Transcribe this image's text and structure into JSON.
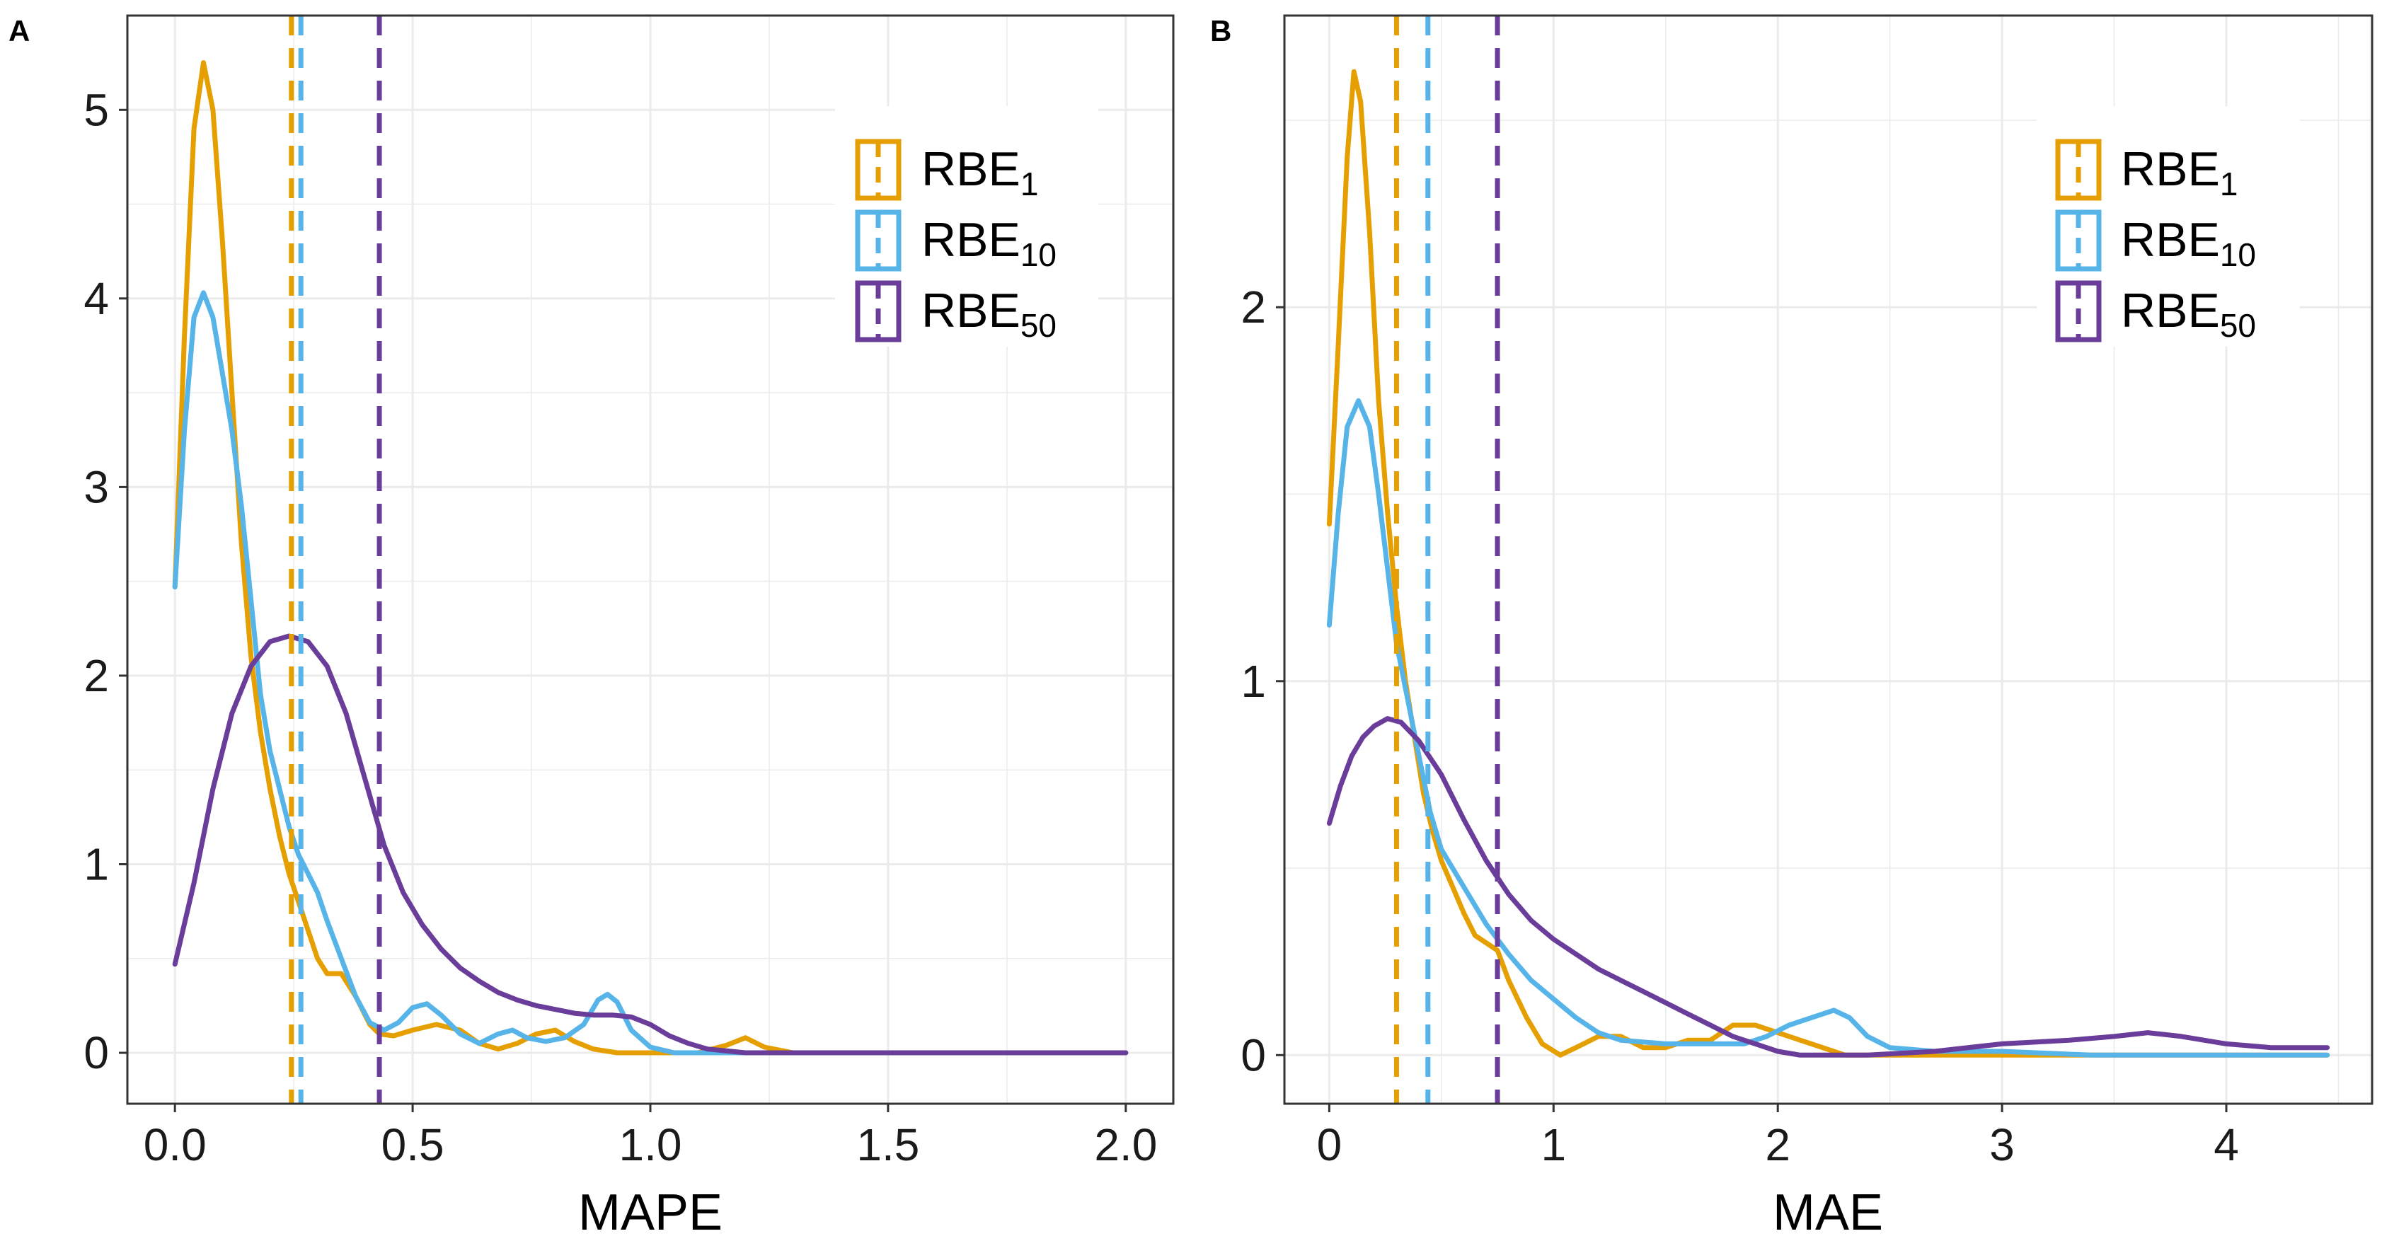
{
  "figure": {
    "panels": [
      {
        "tag": "A",
        "xlabel": "MAPE",
        "x_ticks": [
          "0.0",
          "0.5",
          "1.0",
          "1.5",
          "2.0"
        ],
        "y_ticks": [
          "0",
          "1",
          "2",
          "3",
          "4",
          "5"
        ]
      },
      {
        "tag": "B",
        "xlabel": "MAE",
        "x_ticks": [
          "0",
          "1",
          "2",
          "3",
          "4"
        ],
        "y_ticks": [
          "0",
          "1",
          "2"
        ]
      }
    ],
    "legend": [
      {
        "base": "RBE",
        "sub": "1"
      },
      {
        "base": "RBE",
        "sub": "10"
      },
      {
        "base": "RBE",
        "sub": "50"
      }
    ]
  },
  "colors": {
    "RBE1": "#E69F00",
    "RBE10": "#56B4E9",
    "RBE50": "#6A3D9A",
    "grid": "#ebebeb",
    "frame": "#333333"
  },
  "chart_data": [
    {
      "type": "line",
      "kind": "density",
      "title": "",
      "panel": "A",
      "xlabel": "MAPE",
      "ylabel": "",
      "xlim": [
        -0.1,
        2.1
      ],
      "ylim": [
        -0.27,
        5.5
      ],
      "x_ticks": [
        0,
        0.5,
        1.0,
        1.5,
        2.0
      ],
      "y_ticks": [
        0,
        1,
        2,
        3,
        4,
        5
      ],
      "series": [
        {
          "name": "RBE1",
          "color_key": "RBE1",
          "points": [
            [
              0,
              2.47
            ],
            [
              0.02,
              3.8
            ],
            [
              0.04,
              4.9
            ],
            [
              0.06,
              5.25
            ],
            [
              0.08,
              5.0
            ],
            [
              0.1,
              4.3
            ],
            [
              0.12,
              3.5
            ],
            [
              0.14,
              2.7
            ],
            [
              0.16,
              2.1
            ],
            [
              0.18,
              1.7
            ],
            [
              0.2,
              1.4
            ],
            [
              0.22,
              1.15
            ],
            [
              0.24,
              0.95
            ],
            [
              0.26,
              0.8
            ],
            [
              0.28,
              0.65
            ],
            [
              0.3,
              0.5
            ],
            [
              0.32,
              0.42
            ],
            [
              0.35,
              0.42
            ],
            [
              0.38,
              0.3
            ],
            [
              0.41,
              0.15
            ],
            [
              0.43,
              0.1
            ],
            [
              0.46,
              0.09
            ],
            [
              0.5,
              0.12
            ],
            [
              0.55,
              0.15
            ],
            [
              0.6,
              0.12
            ],
            [
              0.64,
              0.05
            ],
            [
              0.68,
              0.02
            ],
            [
              0.72,
              0.05
            ],
            [
              0.76,
              0.1
            ],
            [
              0.8,
              0.12
            ],
            [
              0.84,
              0.06
            ],
            [
              0.88,
              0.02
            ],
            [
              0.93,
              0.0
            ],
            [
              1.0,
              0.0
            ],
            [
              1.1,
              0.0
            ],
            [
              1.16,
              0.04
            ],
            [
              1.2,
              0.08
            ],
            [
              1.24,
              0.03
            ],
            [
              1.3,
              0.0
            ],
            [
              1.5,
              0.0
            ],
            [
              2.0,
              0.0
            ]
          ]
        },
        {
          "name": "RBE10",
          "color_key": "RBE10",
          "points": [
            [
              0,
              2.47
            ],
            [
              0.02,
              3.3
            ],
            [
              0.04,
              3.9
            ],
            [
              0.06,
              4.03
            ],
            [
              0.08,
              3.9
            ],
            [
              0.1,
              3.6
            ],
            [
              0.12,
              3.3
            ],
            [
              0.14,
              2.9
            ],
            [
              0.16,
              2.4
            ],
            [
              0.18,
              1.9
            ],
            [
              0.2,
              1.6
            ],
            [
              0.22,
              1.4
            ],
            [
              0.24,
              1.2
            ],
            [
              0.26,
              1.05
            ],
            [
              0.28,
              0.95
            ],
            [
              0.3,
              0.85
            ],
            [
              0.32,
              0.7
            ],
            [
              0.35,
              0.5
            ],
            [
              0.38,
              0.3
            ],
            [
              0.41,
              0.16
            ],
            [
              0.44,
              0.12
            ],
            [
              0.47,
              0.16
            ],
            [
              0.5,
              0.24
            ],
            [
              0.53,
              0.26
            ],
            [
              0.56,
              0.2
            ],
            [
              0.6,
              0.1
            ],
            [
              0.64,
              0.05
            ],
            [
              0.68,
              0.1
            ],
            [
              0.71,
              0.12
            ],
            [
              0.74,
              0.08
            ],
            [
              0.78,
              0.06
            ],
            [
              0.82,
              0.08
            ],
            [
              0.86,
              0.15
            ],
            [
              0.89,
              0.28
            ],
            [
              0.91,
              0.31
            ],
            [
              0.93,
              0.27
            ],
            [
              0.96,
              0.12
            ],
            [
              1.0,
              0.03
            ],
            [
              1.05,
              0.0
            ],
            [
              1.2,
              0.0
            ],
            [
              2.0,
              0.0
            ]
          ]
        },
        {
          "name": "RBE50",
          "color_key": "RBE50",
          "points": [
            [
              0,
              0.47
            ],
            [
              0.04,
              0.9
            ],
            [
              0.08,
              1.4
            ],
            [
              0.12,
              1.8
            ],
            [
              0.16,
              2.05
            ],
            [
              0.2,
              2.18
            ],
            [
              0.24,
              2.21
            ],
            [
              0.28,
              2.18
            ],
            [
              0.32,
              2.05
            ],
            [
              0.36,
              1.8
            ],
            [
              0.4,
              1.45
            ],
            [
              0.44,
              1.1
            ],
            [
              0.48,
              0.85
            ],
            [
              0.52,
              0.68
            ],
            [
              0.56,
              0.55
            ],
            [
              0.6,
              0.45
            ],
            [
              0.64,
              0.38
            ],
            [
              0.68,
              0.32
            ],
            [
              0.72,
              0.28
            ],
            [
              0.76,
              0.25
            ],
            [
              0.8,
              0.23
            ],
            [
              0.84,
              0.21
            ],
            [
              0.88,
              0.2
            ],
            [
              0.92,
              0.2
            ],
            [
              0.96,
              0.19
            ],
            [
              1.0,
              0.15
            ],
            [
              1.04,
              0.09
            ],
            [
              1.08,
              0.05
            ],
            [
              1.12,
              0.02
            ],
            [
              1.2,
              0.0
            ],
            [
              1.3,
              0.0
            ],
            [
              2.0,
              0.0
            ]
          ]
        }
      ],
      "vlines": [
        {
          "series": "RBE1",
          "x": 0.245
        },
        {
          "series": "RBE10",
          "x": 0.265
        },
        {
          "series": "RBE50",
          "x": 0.43
        }
      ],
      "legend": "top-right"
    },
    {
      "type": "line",
      "kind": "density",
      "title": "",
      "panel": "B",
      "xlabel": "MAE",
      "ylabel": "",
      "xlim": [
        -0.2,
        4.65
      ],
      "ylim": [
        -0.13,
        2.78
      ],
      "x_ticks": [
        0,
        1,
        2,
        3,
        4
      ],
      "y_ticks": [
        0,
        1,
        2
      ],
      "series": [
        {
          "name": "RBE1",
          "color_key": "RBE1",
          "points": [
            [
              0,
              1.42
            ],
            [
              0.04,
              1.9
            ],
            [
              0.08,
              2.4
            ],
            [
              0.11,
              2.63
            ],
            [
              0.14,
              2.55
            ],
            [
              0.18,
              2.2
            ],
            [
              0.22,
              1.75
            ],
            [
              0.26,
              1.45
            ],
            [
              0.3,
              1.2
            ],
            [
              0.34,
              1.0
            ],
            [
              0.38,
              0.85
            ],
            [
              0.42,
              0.7
            ],
            [
              0.46,
              0.6
            ],
            [
              0.5,
              0.52
            ],
            [
              0.55,
              0.45
            ],
            [
              0.6,
              0.38
            ],
            [
              0.65,
              0.32
            ],
            [
              0.7,
              0.3
            ],
            [
              0.75,
              0.28
            ],
            [
              0.8,
              0.2
            ],
            [
              0.88,
              0.1
            ],
            [
              0.95,
              0.03
            ],
            [
              1.03,
              0.0
            ],
            [
              1.1,
              0.02
            ],
            [
              1.2,
              0.05
            ],
            [
              1.3,
              0.05
            ],
            [
              1.4,
              0.02
            ],
            [
              1.5,
              0.02
            ],
            [
              1.6,
              0.04
            ],
            [
              1.7,
              0.04
            ],
            [
              1.8,
              0.08
            ],
            [
              1.9,
              0.08
            ],
            [
              2.0,
              0.06
            ],
            [
              2.1,
              0.04
            ],
            [
              2.2,
              0.02
            ],
            [
              2.3,
              0.0
            ],
            [
              3.0,
              0.0
            ],
            [
              4.45,
              0.0
            ]
          ]
        },
        {
          "name": "RBE10",
          "color_key": "RBE10",
          "points": [
            [
              0,
              1.15
            ],
            [
              0.04,
              1.45
            ],
            [
              0.08,
              1.68
            ],
            [
              0.13,
              1.75
            ],
            [
              0.18,
              1.68
            ],
            [
              0.22,
              1.5
            ],
            [
              0.26,
              1.3
            ],
            [
              0.3,
              1.1
            ],
            [
              0.35,
              0.95
            ],
            [
              0.4,
              0.8
            ],
            [
              0.45,
              0.65
            ],
            [
              0.5,
              0.55
            ],
            [
              0.6,
              0.45
            ],
            [
              0.7,
              0.35
            ],
            [
              0.8,
              0.27
            ],
            [
              0.9,
              0.2
            ],
            [
              1.0,
              0.15
            ],
            [
              1.1,
              0.1
            ],
            [
              1.2,
              0.06
            ],
            [
              1.3,
              0.04
            ],
            [
              1.5,
              0.03
            ],
            [
              1.7,
              0.03
            ],
            [
              1.85,
              0.03
            ],
            [
              1.95,
              0.05
            ],
            [
              2.05,
              0.08
            ],
            [
              2.15,
              0.1
            ],
            [
              2.25,
              0.12
            ],
            [
              2.32,
              0.1
            ],
            [
              2.4,
              0.05
            ],
            [
              2.5,
              0.02
            ],
            [
              2.7,
              0.01
            ],
            [
              3.0,
              0.01
            ],
            [
              3.4,
              0.0
            ],
            [
              4.45,
              0.0
            ]
          ]
        },
        {
          "name": "RBE50",
          "color_key": "RBE50",
          "points": [
            [
              0,
              0.62
            ],
            [
              0.05,
              0.72
            ],
            [
              0.1,
              0.8
            ],
            [
              0.15,
              0.85
            ],
            [
              0.2,
              0.88
            ],
            [
              0.26,
              0.9
            ],
            [
              0.32,
              0.89
            ],
            [
              0.4,
              0.84
            ],
            [
              0.5,
              0.75
            ],
            [
              0.6,
              0.63
            ],
            [
              0.7,
              0.52
            ],
            [
              0.8,
              0.43
            ],
            [
              0.9,
              0.36
            ],
            [
              1.0,
              0.31
            ],
            [
              1.1,
              0.27
            ],
            [
              1.2,
              0.23
            ],
            [
              1.3,
              0.2
            ],
            [
              1.4,
              0.17
            ],
            [
              1.5,
              0.14
            ],
            [
              1.6,
              0.11
            ],
            [
              1.7,
              0.08
            ],
            [
              1.8,
              0.05
            ],
            [
              1.9,
              0.03
            ],
            [
              2.0,
              0.01
            ],
            [
              2.1,
              0.0
            ],
            [
              2.4,
              0.0
            ],
            [
              2.7,
              0.01
            ],
            [
              3.0,
              0.03
            ],
            [
              3.3,
              0.04
            ],
            [
              3.5,
              0.05
            ],
            [
              3.65,
              0.06
            ],
            [
              3.8,
              0.05
            ],
            [
              4.0,
              0.03
            ],
            [
              4.2,
              0.02
            ],
            [
              4.45,
              0.02
            ]
          ]
        }
      ],
      "vlines": [
        {
          "series": "RBE1",
          "x": 0.3
        },
        {
          "series": "RBE10",
          "x": 0.44
        },
        {
          "series": "RBE50",
          "x": 0.75
        }
      ],
      "legend": "top-right"
    }
  ]
}
